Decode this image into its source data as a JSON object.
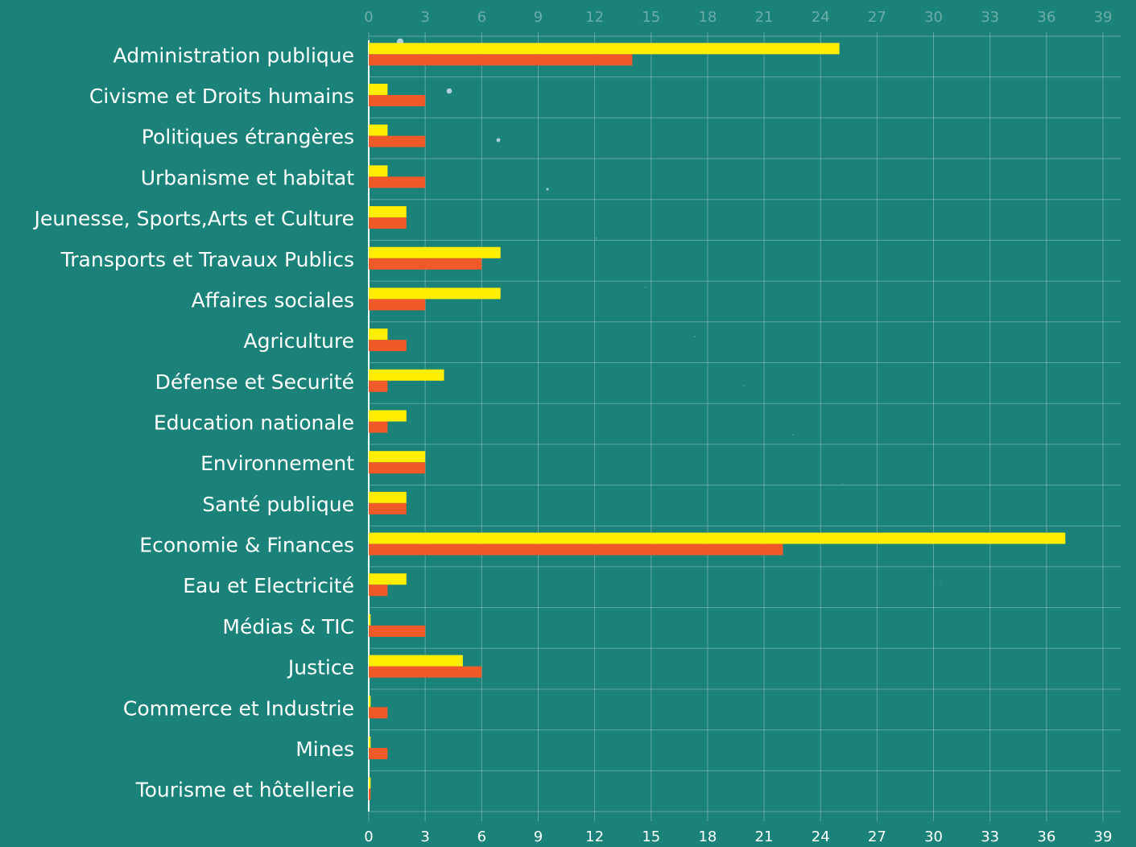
{
  "chart_data": {
    "type": "bar",
    "orientation": "horizontal",
    "categories": [
      "Administration publique",
      "Civisme et Droits humains",
      "Politiques étrangères",
      "Urbanisme et habitat",
      "Jeunesse, Sports,Arts et Culture",
      "Transports et Travaux Publics",
      "Affaires sociales",
      "Agriculture",
      "Défense et Securité",
      "Education nationale",
      "Environnement",
      "Santé publique",
      "Economie & Finances",
      "Eau et Electricité",
      "Médias & TIC",
      "Justice",
      "Commerce et Industrie",
      "Mines",
      "Tourisme et hôtellerie"
    ],
    "series": [
      {
        "color": "#ffee00",
        "values": [
          25,
          1,
          1,
          1,
          2,
          7,
          7,
          1,
          4,
          2,
          3,
          2,
          37,
          2,
          0.1,
          5,
          0.1,
          0.1,
          0.1
        ]
      },
      {
        "color": "#f05a28",
        "values": [
          14,
          3,
          3,
          3,
          2,
          6,
          3,
          2,
          1,
          1,
          3,
          2,
          22,
          1,
          3,
          6,
          1,
          1,
          0.1
        ]
      }
    ],
    "xlim": [
      0,
      39
    ],
    "xticks": [
      0,
      3,
      6,
      9,
      12,
      15,
      18,
      21,
      24,
      27,
      30,
      33,
      36,
      39
    ],
    "grid": true
  }
}
